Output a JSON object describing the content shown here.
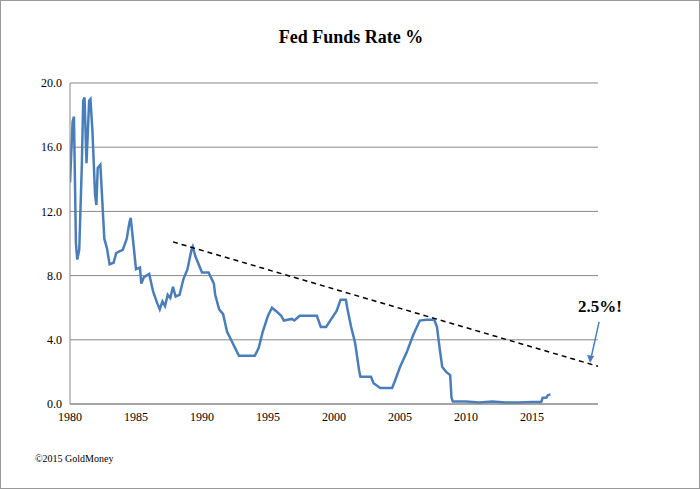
{
  "chart_data": {
    "type": "line",
    "title": "Fed Funds Rate %",
    "source": "©2015 GoldMoney",
    "x": [
      1980.0,
      1980.2,
      1980.3,
      1980.45,
      1980.55,
      1980.7,
      1980.9,
      1981.0,
      1981.1,
      1981.25,
      1981.45,
      1981.55,
      1981.7,
      1981.9,
      1982.0,
      1982.1,
      1982.3,
      1982.6,
      1982.8,
      1983.0,
      1983.3,
      1983.5,
      1983.7,
      1984.0,
      1984.3,
      1984.5,
      1984.6,
      1984.8,
      1985.0,
      1985.3,
      1985.4,
      1985.6,
      1986.0,
      1986.3,
      1986.6,
      1986.8,
      1987.0,
      1987.2,
      1987.4,
      1987.6,
      1987.8,
      1988.0,
      1988.3,
      1988.6,
      1988.9,
      1989.2,
      1989.3,
      1989.5,
      1989.8,
      1990.0,
      1990.5,
      1990.9,
      1991.0,
      1991.3,
      1991.6,
      1991.9,
      1992.2,
      1992.5,
      1992.8,
      1993.0,
      1993.5,
      1994.0,
      1994.3,
      1994.6,
      1995.0,
      1995.3,
      1995.6,
      1996.0,
      1996.2,
      1996.8,
      1997.0,
      1997.4,
      1998.0,
      1998.7,
      1999.0,
      1999.4,
      1999.8,
      2000.2,
      2000.5,
      2000.9,
      2001.0,
      2001.3,
      2001.6,
      2001.9,
      2002.0,
      2002.8,
      2003.0,
      2003.5,
      2004.4,
      2004.6,
      2005.0,
      2005.5,
      2006.0,
      2006.5,
      2007.0,
      2007.6,
      2007.8,
      2008.0,
      2008.2,
      2008.5,
      2008.8,
      2008.9,
      2009.0,
      2010.0,
      2011.0,
      2012.0,
      2013.0,
      2014.0,
      2015.0,
      2015.7,
      2015.8,
      2016.1,
      2016.2,
      2016.4
    ],
    "values": [
      13.8,
      17.6,
      17.9,
      10.0,
      9.0,
      9.6,
      15.0,
      18.9,
      19.1,
      15.0,
      18.9,
      19.0,
      17.0,
      13.0,
      12.4,
      14.7,
      14.9,
      10.3,
      9.7,
      8.7,
      8.8,
      9.4,
      9.5,
      9.6,
      10.3,
      11.3,
      11.6,
      10.0,
      8.4,
      8.5,
      7.5,
      7.9,
      8.1,
      7.0,
      6.3,
      5.9,
      6.4,
      6.1,
      6.8,
      6.6,
      7.3,
      6.7,
      6.8,
      7.8,
      8.4,
      9.6,
      9.8,
      9.2,
      8.6,
      8.2,
      8.2,
      7.5,
      6.8,
      5.9,
      5.6,
      4.5,
      4.0,
      3.5,
      3.0,
      3.0,
      3.0,
      3.0,
      3.5,
      4.5,
      5.5,
      6.0,
      5.8,
      5.5,
      5.2,
      5.3,
      5.2,
      5.5,
      5.5,
      5.5,
      4.8,
      4.8,
      5.3,
      5.8,
      6.5,
      6.5,
      6.0,
      4.8,
      3.8,
      2.1,
      1.7,
      1.7,
      1.3,
      1.0,
      1.0,
      1.4,
      2.3,
      3.2,
      4.3,
      5.2,
      5.25,
      5.25,
      4.8,
      3.5,
      2.3,
      2.0,
      1.8,
      0.4,
      0.15,
      0.15,
      0.1,
      0.15,
      0.1,
      0.1,
      0.13,
      0.13,
      0.38,
      0.4,
      0.55,
      0.6
    ],
    "color": "#4a7ebb",
    "trendline": {
      "x": [
        1987.8,
        2020
      ],
      "values": [
        10.1,
        2.35
      ],
      "color": "#000000",
      "line_style": "dashed"
    },
    "annotations": [
      {
        "text": "2.5%!",
        "x": 2019.4,
        "y": 2.5
      }
    ],
    "xlim": [
      1980,
      2020
    ],
    "xticks": [
      1980,
      1985,
      1990,
      1995,
      2000,
      2005,
      2010,
      2015
    ],
    "ylim": [
      0,
      20
    ],
    "yticks": [
      {
        "value": 0,
        "label": "0.0"
      },
      {
        "value": 4,
        "label": "4.0"
      },
      {
        "value": 8,
        "label": "8.0"
      },
      {
        "value": 12,
        "label": "12.0"
      },
      {
        "value": 16,
        "label": "16.0"
      },
      {
        "value": 20,
        "label": "20.0"
      }
    ],
    "grid": true
  }
}
